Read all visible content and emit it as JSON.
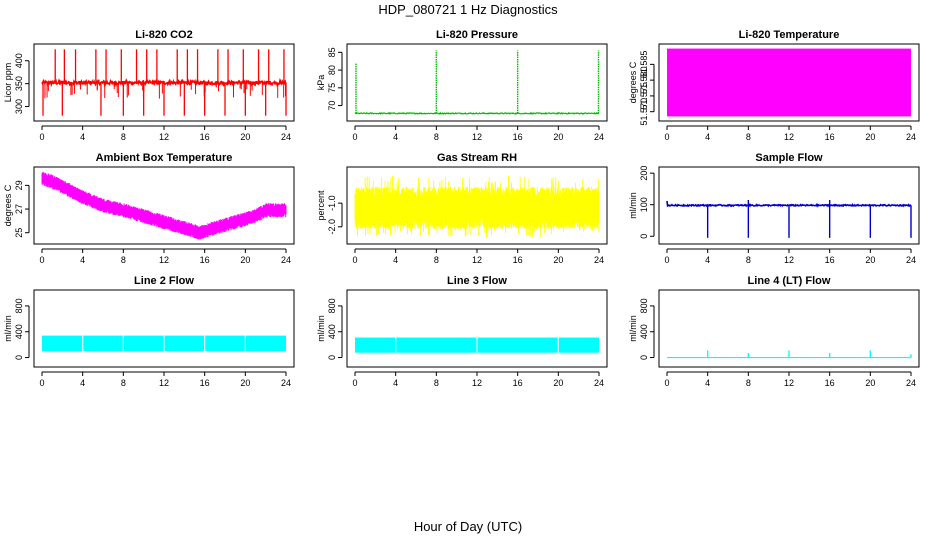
{
  "figure": {
    "title": "HDP_080721  1 Hz Diagnostics",
    "xlabel": "Hour of Day (UTC)"
  },
  "chart_data": [
    {
      "id": "co2",
      "type": "line",
      "title": "Li-820 CO2",
      "ylabel": "Licor ppm",
      "color": "#ff0000",
      "xlim": [
        0,
        24
      ],
      "ylim": [
        275,
        430
      ],
      "yticks": [
        "300",
        "350",
        "400"
      ],
      "ytick_values": [
        300,
        350,
        400
      ],
      "xticks": [
        "0",
        "4",
        "8",
        "12",
        "16",
        "20",
        "24"
      ],
      "series": {
        "baseline": 352,
        "noise": 4,
        "spikes_up": [
          1.3,
          2.2,
          3.3,
          5.3,
          6.3,
          7.8,
          9.3,
          10.3,
          11.3,
          13.3,
          14.3,
          15.3,
          17.3,
          18.3,
          19.8,
          21.3,
          22.3,
          23.8
        ],
        "spike_up_value": 425,
        "spikes_down": [
          0.1,
          2.0,
          5.8,
          8.0,
          10.0,
          12.0,
          14.0,
          16.0,
          18.0,
          20.0,
          22.0,
          24.0
        ],
        "spike_down_value": 280
      }
    },
    {
      "id": "pressure",
      "type": "line",
      "title": "Li-820 Pressure",
      "ylabel": "kPa",
      "color": "#00bb00",
      "xlim": [
        0,
        24
      ],
      "ylim": [
        66.5,
        86.5
      ],
      "yticks": [
        "70",
        "75",
        "80",
        "85"
      ],
      "ytick_values": [
        70,
        75,
        80,
        85
      ],
      "xticks": [
        "0",
        "4",
        "8",
        "12",
        "16",
        "20",
        "24"
      ],
      "series": {
        "baseline": 67.8,
        "noise": 0.15,
        "spikes": [
          0.1,
          8.0,
          16.0,
          23.95
        ],
        "spike_values": [
          82,
          85.5,
          85.5,
          85.5
        ]
      }
    },
    {
      "id": "temp820",
      "type": "area",
      "title": "Li-820 Temperature",
      "ylabel": "degrees C",
      "color": "#ff00ff",
      "xlim": [
        0,
        24
      ],
      "ylim": [
        51.568,
        51.5905
      ],
      "yticks": [
        "51.570",
        "51.575",
        "51.580",
        "51.585"
      ],
      "ytick_values": [
        51.57,
        51.575,
        51.58,
        51.585
      ],
      "xticks": [
        "0",
        "4",
        "8",
        "12",
        "16",
        "20",
        "24"
      ],
      "series": {
        "fill_low": 51.5685,
        "fill_high": 51.59
      }
    },
    {
      "id": "ambient",
      "type": "line",
      "title": "Ambient Box Temperature",
      "ylabel": "degrees C",
      "color": "#ff00ff",
      "xlim": [
        0,
        24
      ],
      "ylim": [
        24.3,
        30.3
      ],
      "yticks": [
        "25",
        "27",
        "29"
      ],
      "ytick_values": [
        25,
        27,
        29
      ],
      "xticks": [
        "0",
        "4",
        "8",
        "12",
        "16",
        "20",
        "24"
      ],
      "series": {
        "x": [
          0,
          1,
          2,
          4,
          6,
          8,
          10,
          12,
          14,
          15.5,
          17,
          19,
          21,
          22,
          24
        ],
        "y": [
          29.6,
          29.3,
          28.9,
          28.0,
          27.3,
          26.9,
          26.4,
          25.9,
          25.4,
          25.0,
          25.4,
          25.9,
          26.4,
          26.9,
          26.9
        ],
        "band": 0.6
      }
    },
    {
      "id": "rh",
      "type": "line",
      "title": "Gas Stream RH",
      "ylabel": "percent",
      "color": "#ffff00",
      "xlim": [
        0,
        24
      ],
      "ylim": [
        -2.6,
        0.4
      ],
      "yticks": [
        "-2.0",
        "-1.0"
      ],
      "ytick_values": [
        -2.0,
        -1.0
      ],
      "xticks": [
        "0",
        "4",
        "8",
        "12",
        "16",
        "20",
        "24"
      ],
      "series": {
        "center": -1.2,
        "low": -1.85,
        "high": -0.55,
        "spike_low": -2.45,
        "spike_high": 0.15
      }
    },
    {
      "id": "sample",
      "type": "line",
      "title": "Sample Flow",
      "ylabel": "ml/min",
      "color": "#0000cc",
      "xlim": [
        0,
        24
      ],
      "ylim": [
        -15,
        210
      ],
      "yticks": [
        "0",
        "100",
        "200"
      ],
      "ytick_values": [
        0,
        100,
        200
      ],
      "xticks": [
        "0",
        "4",
        "8",
        "12",
        "16",
        "20",
        "24"
      ],
      "series": {
        "baseline": 98,
        "start_value": 112,
        "drops": [
          4,
          8,
          12,
          16,
          20,
          24
        ],
        "drop_value": -5,
        "peaks": [
          8,
          16
        ],
        "peak_value": 115
      }
    },
    {
      "id": "line2",
      "type": "area",
      "title": "Line 2 Flow",
      "ylabel": "ml/min",
      "color": "#00ffff",
      "xlim": [
        0,
        24
      ],
      "ylim": [
        -100,
        1000
      ],
      "yticks": [
        "0",
        "400",
        "800"
      ],
      "ytick_values": [
        0,
        400,
        800
      ],
      "xticks": [
        "0",
        "4",
        "8",
        "12",
        "16",
        "20",
        "24"
      ],
      "series": {
        "fill_low": 100,
        "fill_high": 340,
        "gaps": [
          4,
          8,
          12,
          16,
          20
        ]
      }
    },
    {
      "id": "line3",
      "type": "area",
      "title": "Line 3 Flow",
      "ylabel": "ml/min",
      "color": "#00ffff",
      "xlim": [
        0,
        24
      ],
      "ylim": [
        -100,
        1000
      ],
      "yticks": [
        "0",
        "400",
        "800"
      ],
      "ytick_values": [
        0,
        400,
        800
      ],
      "xticks": [
        "0",
        "4",
        "8",
        "12",
        "16",
        "20",
        "24"
      ],
      "series": {
        "fill_low": 75,
        "fill_high": 310,
        "gaps": [
          4,
          12,
          20
        ]
      }
    },
    {
      "id": "line4",
      "type": "line",
      "title": "Line 4 (LT) Flow",
      "ylabel": "ml/min",
      "color": "#00ffff",
      "xlim": [
        0,
        24
      ],
      "ylim": [
        -100,
        1000
      ],
      "yticks": [
        "0",
        "400",
        "800"
      ],
      "ytick_values": [
        0,
        400,
        800
      ],
      "xticks": [
        "0",
        "4",
        "8",
        "12",
        "16",
        "20",
        "24"
      ],
      "series": {
        "baseline": 0,
        "spikes": [
          4,
          8,
          12,
          16,
          20,
          24
        ],
        "spike_values": [
          110,
          70,
          110,
          70,
          110,
          50
        ]
      }
    }
  ]
}
